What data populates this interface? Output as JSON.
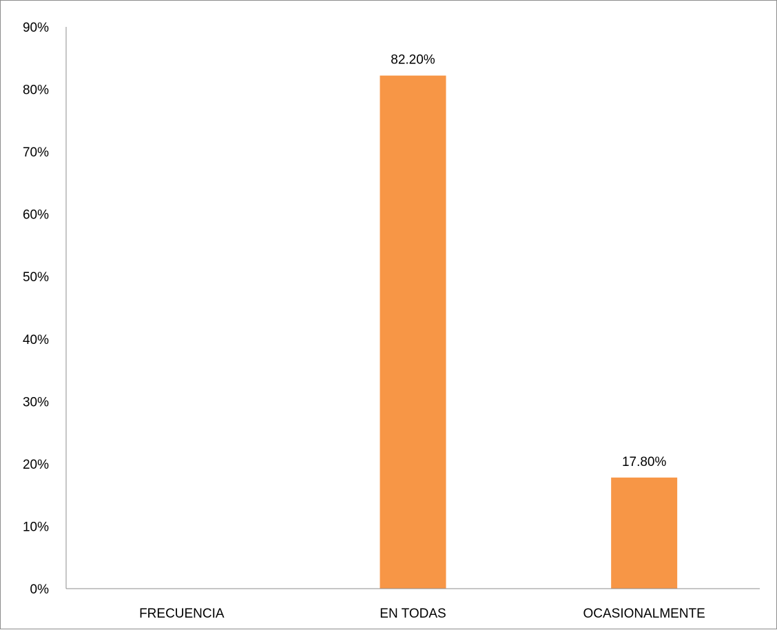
{
  "chart_data": {
    "type": "bar",
    "title": "",
    "xlabel": "",
    "ylabel": "",
    "categories": [
      "FRECUENCIA",
      "EN TODAS",
      "OCASIONALMENTE"
    ],
    "values": [
      null,
      82.2,
      17.8
    ],
    "data_labels": [
      "",
      "82.20%",
      "17.80%"
    ],
    "ylim": [
      0,
      90
    ],
    "y_ticks": [
      0,
      10,
      20,
      30,
      40,
      50,
      60,
      70,
      80,
      90
    ],
    "y_tick_labels": [
      "0%",
      "10%",
      "20%",
      "30%",
      "40%",
      "50%",
      "60%",
      "70%",
      "80%",
      "90%"
    ],
    "grid": false,
    "legend": "none",
    "bar_color": "#F79646"
  }
}
